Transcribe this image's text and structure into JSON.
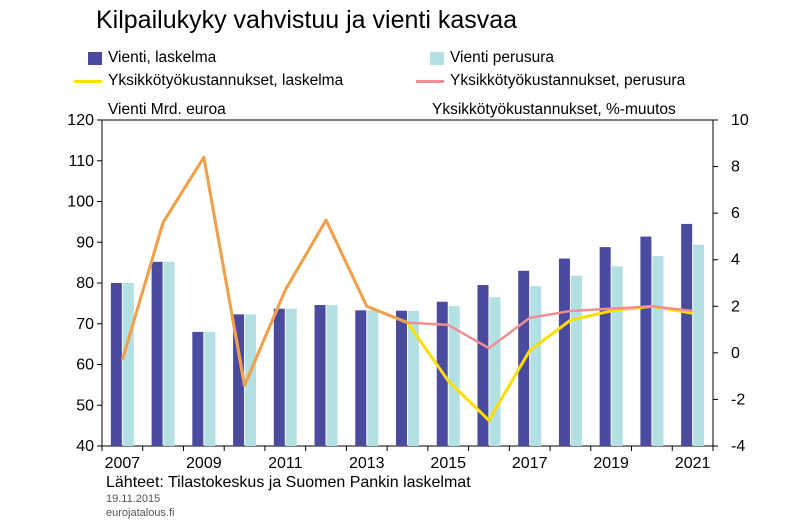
{
  "title": "Kilpailukyky vahvistuu ja vienti kasvaa",
  "colors": {
    "vienti_laskelma": "#4a4a9e",
    "vienti_perusura": "#b3e0e3",
    "yks_laskelma": "#ffde00",
    "yks_perusura": "#ef8f94",
    "overlap": "#f0a050"
  },
  "legend": {
    "vienti_laskelma": "Vienti, laskelma",
    "vienti_perusura": "Vienti perusura",
    "yks_laskelma": "Yksikkötyökustannukset, laskelma",
    "yks_perusura": "Yksikkötyökustannukset, perusura"
  },
  "left_axis_title": "Vienti Mrd. euroa",
  "right_axis_title": "Yksikkötyökustannukset, %-muutos",
  "source": "Lähteet: Tilastokeskus ja Suomen Pankin laskelmat",
  "date": "19.11.2015",
  "site": "eurojatalous.fi",
  "chart_data": {
    "type": "bar",
    "x": [
      2007,
      2008,
      2009,
      2010,
      2011,
      2012,
      2013,
      2014,
      2015,
      2016,
      2017,
      2018,
      2019,
      2020,
      2021
    ],
    "x_tick_labels": [
      "2007",
      "2009",
      "2011",
      "2013",
      "2015",
      "2017",
      "2019",
      "2021"
    ],
    "series": [
      {
        "name": "Vienti, laskelma",
        "type": "bar",
        "axis": "left",
        "values": [
          80,
          85.2,
          68,
          72.3,
          73.7,
          74.6,
          73.3,
          73.2,
          75.4,
          79.5,
          83,
          86,
          88.8,
          91.4,
          94.5
        ]
      },
      {
        "name": "Vienti perusura",
        "type": "bar",
        "axis": "left",
        "values": [
          80,
          85.2,
          68,
          72.3,
          73.7,
          74.6,
          73.3,
          73.2,
          74.3,
          76.5,
          79.2,
          81.8,
          84.1,
          86.6,
          89.4
        ]
      },
      {
        "name": "Yksikkötyökustannukset, laskelma",
        "type": "line",
        "axis": "right",
        "values": [
          -0.3,
          5.6,
          8.4,
          -1.4,
          2.7,
          5.7,
          2,
          1.3,
          -1.2,
          -2.9,
          0.1,
          1.4,
          1.8,
          2,
          1.7
        ]
      },
      {
        "name": "Yksikkötyökustannukset, perusura",
        "type": "line",
        "axis": "right",
        "values": [
          -0.3,
          5.6,
          8.4,
          -1.4,
          2.7,
          5.7,
          2,
          1.3,
          1.2,
          0.2,
          1.5,
          1.8,
          1.9,
          2,
          1.8
        ]
      }
    ],
    "left_axis": {
      "min": 40,
      "max": 120,
      "ticks": [
        40,
        50,
        60,
        70,
        80,
        90,
        100,
        110,
        120
      ]
    },
    "right_axis": {
      "min": -4,
      "max": 10,
      "ticks": [
        -4,
        -2,
        0,
        2,
        4,
        6,
        8,
        10
      ]
    },
    "grid": false,
    "legend_position": "top"
  }
}
